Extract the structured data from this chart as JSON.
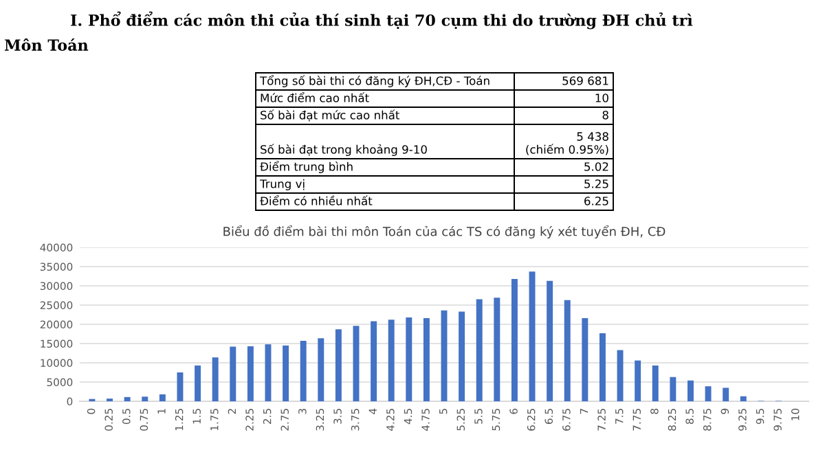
{
  "chart_data": {
    "type": "bar",
    "title": "Biểu đồ điểm bài thi môn Toán của các TS có đăng ký xét tuyển ĐH, CĐ",
    "annotations": [
      "I. Phổ điểm các môn thi của thí sinh tại 70 cụm thi do trường ĐH chủ trì",
      "Môn Toán",
      "Tổng số bài thi có đăng ký ĐH,CĐ - Toán",
      "569 681",
      "Mức điểm cao nhất",
      "10",
      "Số bài đạt mức cao nhất",
      "8",
      "Số bài đạt trong khoảng 9-10",
      "5 438\n(chiếm 0.95%)",
      "Điểm trung bình",
      "5.02",
      "Trung vị",
      "5.25",
      "Điểm có nhiều nhất",
      "6.25"
    ],
    "categories": [
      "0",
      "0.25",
      "0.5",
      "0.75",
      "1",
      "1.25",
      "1.5",
      "1.75",
      "2",
      "2.25",
      "2.5",
      "2.75",
      "3",
      "3.25",
      "3.5",
      "3.75",
      "4",
      "4.25",
      "4.5",
      "4.75",
      "5",
      "5.25",
      "5.5",
      "5.75",
      "6",
      "6.25",
      "6.5",
      "6.75",
      "7",
      "7.25",
      "7.5",
      "7.75",
      "8",
      "8.25",
      "8.5",
      "8.75",
      "9",
      "9.25",
      "9.5",
      "9.75",
      "10"
    ],
    "values": [
      600,
      700,
      1100,
      1200,
      1800,
      7500,
      9300,
      11400,
      14200,
      14300,
      14800,
      14500,
      15700,
      16400,
      18700,
      19600,
      20800,
      21200,
      21800,
      21600,
      23600,
      23300,
      26500,
      26900,
      31800,
      33700,
      31300,
      26300,
      21600,
      17700,
      13300,
      10600,
      9300,
      6300,
      5400,
      3900,
      3500,
      1300,
      100,
      100,
      null
    ],
    "color": "#4472c4",
    "ylim": [
      0,
      40000
    ],
    "yticks": [
      0,
      5000,
      10000,
      15000,
      20000,
      25000,
      30000,
      35000,
      40000
    ],
    "grid": "y"
  }
}
